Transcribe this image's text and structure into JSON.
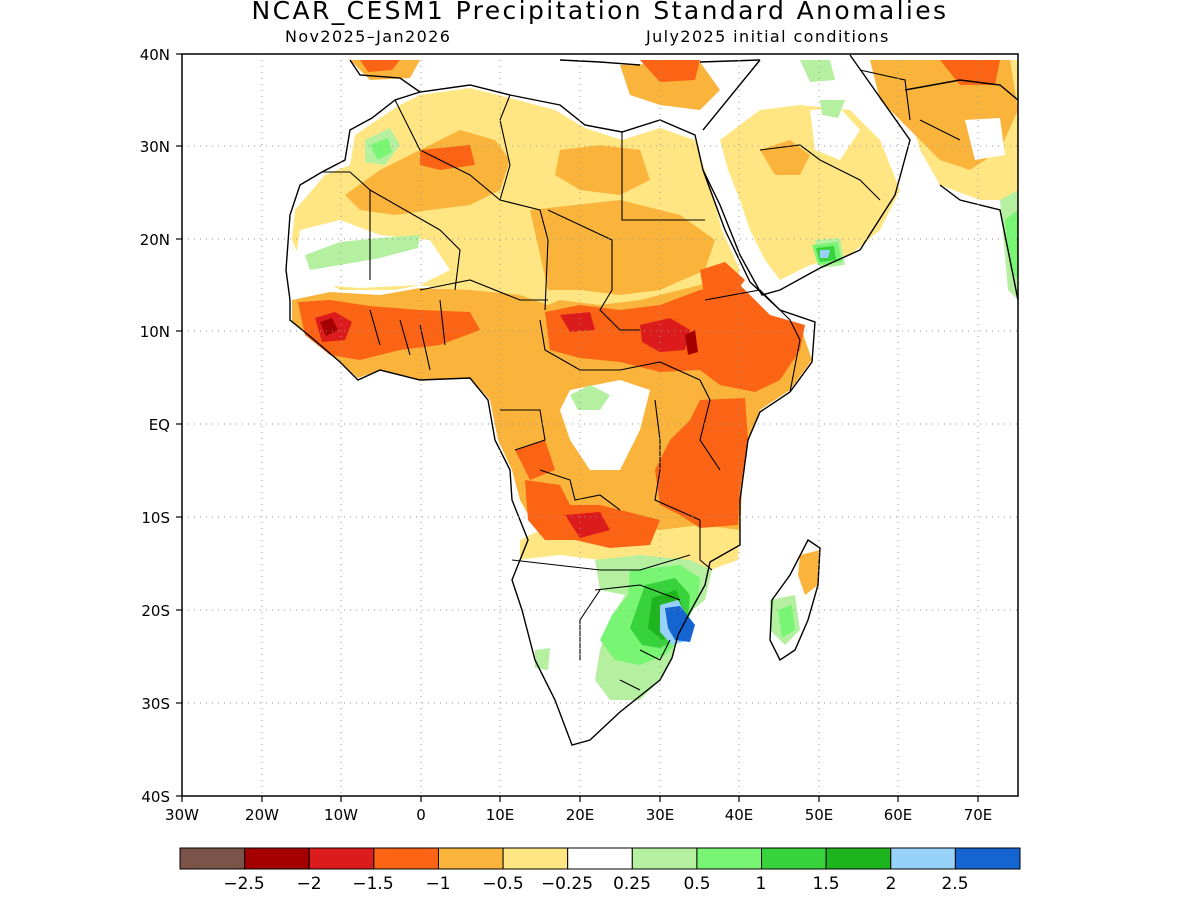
{
  "title": "NCAR_CESM1 Precipitation Standard Anomalies",
  "subtitle_left": "Nov2025–Jan2026",
  "subtitle_right": "July2025 initial conditions",
  "map": {
    "region": "Africa",
    "lon_range": [
      "30W",
      "75E"
    ],
    "lat_range": [
      "40S",
      "40N"
    ],
    "y_ticks": [
      "40N",
      "30N",
      "20N",
      "10N",
      "EQ",
      "10S",
      "20S",
      "30S",
      "40S"
    ],
    "x_ticks": [
      "30W",
      "20W",
      "10W",
      "0",
      "10E",
      "20E",
      "30E",
      "40E",
      "50E",
      "60E",
      "70E"
    ],
    "gridlines": true
  },
  "colorbar": {
    "colors": [
      "#7b5349",
      "#a50000",
      "#dc1c1c",
      "#fa6414",
      "#fab43c",
      "#ffe682",
      "#ffffff",
      "#b4f0a0",
      "#78f573",
      "#37d23c",
      "#1eb41e",
      "#96d2fa",
      "#1464d2"
    ],
    "labels": [
      "−2.5",
      "−2",
      "−1.5",
      "−1",
      "−0.5",
      "−0.25",
      "0.25",
      "0.5",
      "1",
      "1.5",
      "2",
      "2.5"
    ]
  }
}
